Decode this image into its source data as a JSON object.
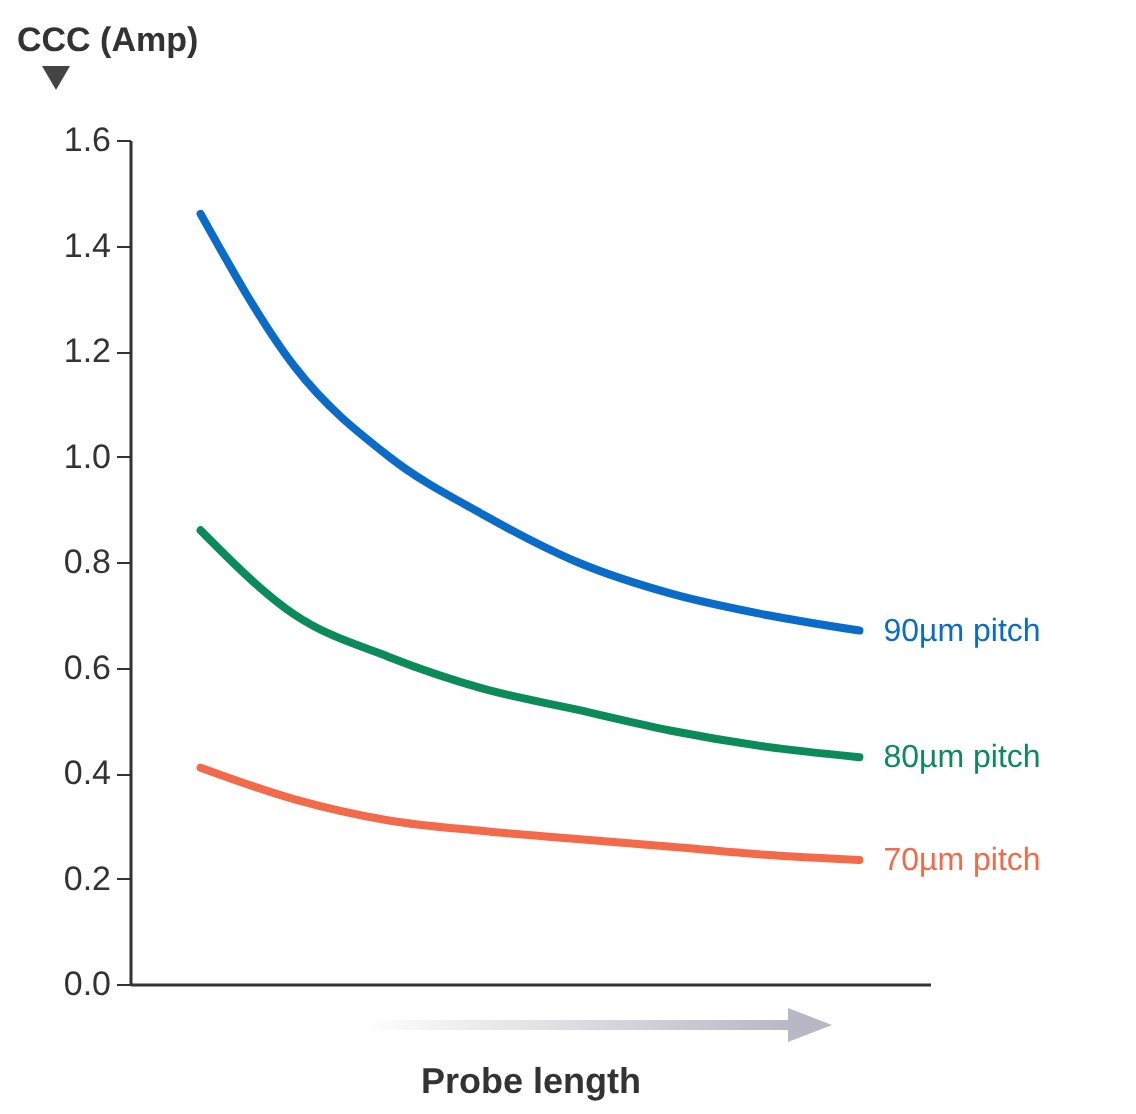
{
  "chart_data": {
    "type": "line",
    "xlabel": "Probe length",
    "ylabel": "CCC (Amp)",
    "categories": [
      null,
      null,
      null,
      null,
      null,
      null,
      null,
      null
    ],
    "series": [
      {
        "name": "90µm pitch",
        "color": "#0a6cc8",
        "values": [
          1.46,
          1.17,
          1.0,
          0.89,
          0.8,
          0.74,
          0.7,
          0.67
        ]
      },
      {
        "name": "80µm pitch",
        "color": "#0b8a5a",
        "values": [
          0.86,
          0.7,
          0.62,
          0.56,
          0.52,
          0.48,
          0.45,
          0.43
        ]
      },
      {
        "name": "70µm pitch",
        "color": "#f26a4a",
        "values": [
          0.41,
          0.35,
          0.31,
          0.29,
          0.275,
          0.26,
          0.245,
          0.235
        ]
      }
    ],
    "ylim": [
      0,
      1.6
    ],
    "yticks": [
      {
        "value": 0,
        "label": "0.0"
      },
      {
        "value": 0.2,
        "label": "0.2"
      },
      {
        "value": 0.4,
        "label": "0.4"
      },
      {
        "value": 0.6,
        "label": "0.6"
      },
      {
        "value": 0.8,
        "label": "0.8"
      },
      {
        "value": 1,
        "label": "1.0"
      },
      {
        "value": 1.2,
        "label": "1.2"
      },
      {
        "value": 1.4,
        "label": "1.4"
      },
      {
        "value": 1.6,
        "label": "1.6"
      }
    ],
    "tick_labels": "y",
    "grid": false,
    "legend": false,
    "marker": "none",
    "line_style": "solid"
  }
}
